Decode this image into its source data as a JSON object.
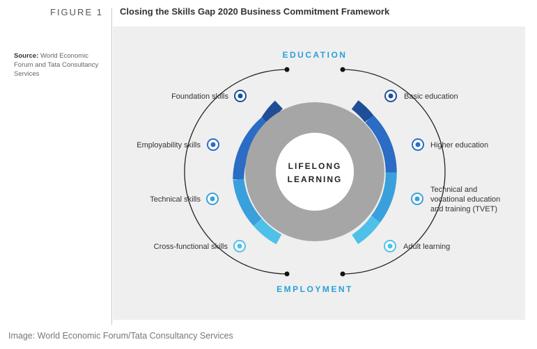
{
  "header": {
    "figure_label": "FIGURE 1",
    "title": "Closing the Skills Gap 2020 Business Commitment Framework"
  },
  "source": {
    "label": "Source:",
    "text": "World Economic Forum and Tata Consultancy Services"
  },
  "diagram": {
    "top_label": "EDUCATION",
    "bottom_label": "EMPLOYMENT",
    "center_line1": "LIFELONG",
    "center_line2": "LEARNING",
    "left_items": [
      {
        "label": "Foundation skills"
      },
      {
        "label": "Employability skills"
      },
      {
        "label": "Technical skills"
      },
      {
        "label": "Cross-functional skills"
      }
    ],
    "right_items": [
      {
        "lines": [
          "Basic education"
        ]
      },
      {
        "lines": [
          "Higher education"
        ]
      },
      {
        "lines": [
          "Technical and",
          "vocational education",
          "and training (TVET)"
        ]
      },
      {
        "lines": [
          "Adult learning"
        ]
      }
    ],
    "colors": {
      "dark_blue": "#1f4e96",
      "mid_blue": "#2b6cc4",
      "light_blue": "#3aa0dc",
      "cyan": "#4fc0e8",
      "gray": "#a6a6a6",
      "heading": "#2a9fd8"
    }
  },
  "caption": "Image: World Economic Forum/Tata Consultancy Services"
}
